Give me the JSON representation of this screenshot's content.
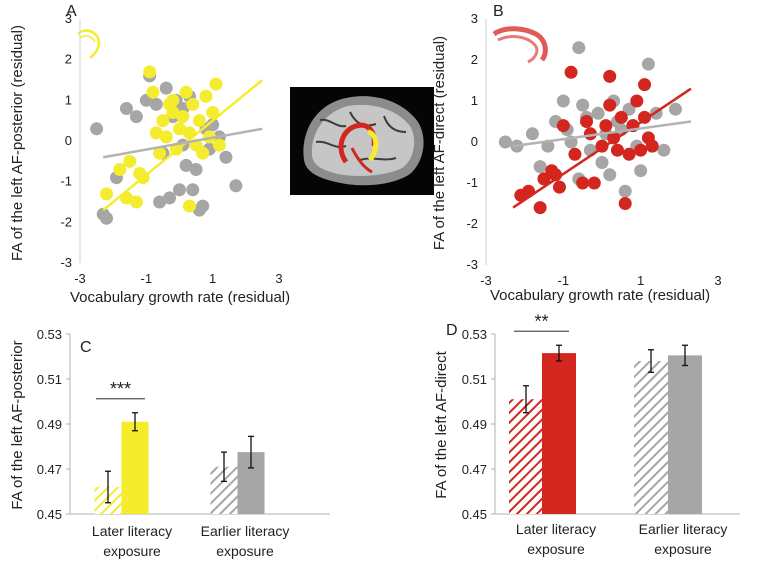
{
  "colors": {
    "yellow": "#f4ec2c",
    "red": "#d2261e",
    "gray": "#a6a6a6",
    "fit_gray": "#b3b3b3"
  },
  "brain_image": {
    "icon": "brain-mri-sagittal-icon"
  },
  "chart_data": [
    {
      "panel": "A",
      "type": "scatter",
      "xlabel": "Vocabulary growth rate (residual)",
      "ylabel": "FA of the left AF-posterior (residual)",
      "xlim": [
        -3,
        3
      ],
      "ylim": [
        -3,
        3
      ],
      "xticks": [
        "-3",
        "-1",
        "1",
        "3"
      ],
      "yticks": [
        "-3",
        "-2",
        "-1",
        "0",
        "1",
        "2",
        "3"
      ],
      "icon": "af-posterior-tract-icon",
      "series": [
        {
          "name": "later",
          "color": "#f4ec2c",
          "points": [
            [
              -2.2,
              -1.3
            ],
            [
              -1.8,
              -0.7
            ],
            [
              -1.6,
              -1.4
            ],
            [
              -1.5,
              -0.5
            ],
            [
              -1.3,
              -1.5
            ],
            [
              -1.2,
              -0.8
            ],
            [
              -1.1,
              -0.9
            ],
            [
              -0.9,
              1.7
            ],
            [
              -0.8,
              1.2
            ],
            [
              -0.7,
              0.2
            ],
            [
              -0.6,
              -0.3
            ],
            [
              -0.5,
              0.5
            ],
            [
              -0.4,
              0.1
            ],
            [
              -0.3,
              0.9
            ],
            [
              -0.2,
              1.0
            ],
            [
              -0.1,
              -0.2
            ],
            [
              0.0,
              0.3
            ],
            [
              0.1,
              0.6
            ],
            [
              0.2,
              1.2
            ],
            [
              0.3,
              0.2
            ],
            [
              0.4,
              0.9
            ],
            [
              0.5,
              -0.1
            ],
            [
              0.6,
              0.5
            ],
            [
              0.7,
              -0.3
            ],
            [
              0.8,
              1.1
            ],
            [
              0.9,
              0.1
            ],
            [
              1.0,
              0.7
            ],
            [
              1.1,
              1.4
            ],
            [
              1.2,
              -0.1
            ],
            [
              0.3,
              -1.6
            ],
            [
              -0.2,
              0.7
            ]
          ]
        },
        {
          "name": "earlier",
          "color": "#a6a6a6",
          "points": [
            [
              -2.5,
              0.3
            ],
            [
              -2.3,
              -1.8
            ],
            [
              -2.2,
              -1.9
            ],
            [
              -1.9,
              -0.9
            ],
            [
              -1.6,
              0.8
            ],
            [
              -1.3,
              0.6
            ],
            [
              -1.0,
              1.0
            ],
            [
              -0.9,
              1.6
            ],
            [
              -0.7,
              0.9
            ],
            [
              -0.6,
              -1.5
            ],
            [
              -0.5,
              -0.3
            ],
            [
              -0.3,
              -1.4
            ],
            [
              -0.2,
              0.6
            ],
            [
              -0.1,
              1.0
            ],
            [
              0.0,
              -1.2
            ],
            [
              0.1,
              -0.1
            ],
            [
              0.2,
              -0.6
            ],
            [
              0.3,
              1.1
            ],
            [
              0.4,
              -1.2
            ],
            [
              0.5,
              -0.7
            ],
            [
              0.6,
              -1.7
            ],
            [
              0.7,
              -1.6
            ],
            [
              0.8,
              0.3
            ],
            [
              0.9,
              -0.2
            ],
            [
              1.0,
              0.4
            ],
            [
              1.2,
              0.1
            ],
            [
              1.4,
              -0.4
            ],
            [
              1.7,
              -1.1
            ],
            [
              0.1,
              0.8
            ],
            [
              -0.4,
              1.3
            ]
          ]
        }
      ],
      "fits": [
        {
          "name": "later",
          "color": "#f4ec2c",
          "from": [
            -2.3,
            -1.7
          ],
          "to": [
            2.5,
            1.5
          ]
        },
        {
          "name": "earlier",
          "color": "#b3b3b3",
          "from": [
            -2.3,
            -0.4
          ],
          "to": [
            2.5,
            0.3
          ]
        }
      ]
    },
    {
      "panel": "B",
      "type": "scatter",
      "xlabel": "Vocabulary growth rate (residual)",
      "ylabel": "FA of the left AF-direct (residual)",
      "xlim": [
        -3,
        3
      ],
      "ylim": [
        -3,
        3
      ],
      "xticks": [
        "-3",
        "-1",
        "1",
        "3"
      ],
      "yticks": [
        "-3",
        "-2",
        "-1",
        "0",
        "1",
        "2",
        "3"
      ],
      "icon": "af-direct-tract-icon",
      "series": [
        {
          "name": "later",
          "color": "#d2261e",
          "points": [
            [
              -2.1,
              -1.3
            ],
            [
              -1.9,
              -1.2
            ],
            [
              -1.6,
              -1.6
            ],
            [
              -1.5,
              -0.9
            ],
            [
              -1.3,
              -0.7
            ],
            [
              -1.2,
              -0.8
            ],
            [
              -1.1,
              -1.1
            ],
            [
              -1.0,
              0.4
            ],
            [
              -0.8,
              1.7
            ],
            [
              -0.7,
              -0.3
            ],
            [
              -0.5,
              -1.0
            ],
            [
              -0.4,
              0.5
            ],
            [
              -0.3,
              0.2
            ],
            [
              -0.2,
              -1.0
            ],
            [
              0.0,
              -0.1
            ],
            [
              0.1,
              0.4
            ],
            [
              0.2,
              0.9
            ],
            [
              0.3,
              0.1
            ],
            [
              0.4,
              -0.2
            ],
            [
              0.5,
              0.6
            ],
            [
              0.6,
              -1.5
            ],
            [
              0.7,
              -0.3
            ],
            [
              0.8,
              0.4
            ],
            [
              0.9,
              1.0
            ],
            [
              1.0,
              -0.2
            ],
            [
              1.1,
              0.6
            ],
            [
              1.2,
              0.1
            ],
            [
              1.3,
              -0.1
            ],
            [
              1.1,
              1.4
            ],
            [
              0.2,
              1.6
            ]
          ]
        },
        {
          "name": "earlier",
          "color": "#a6a6a6",
          "points": [
            [
              -2.5,
              0.0
            ],
            [
              -2.2,
              -0.1
            ],
            [
              -1.8,
              0.2
            ],
            [
              -1.6,
              -0.6
            ],
            [
              -1.4,
              -0.1
            ],
            [
              -1.2,
              0.5
            ],
            [
              -1.0,
              1.0
            ],
            [
              -0.9,
              0.3
            ],
            [
              -0.8,
              0.0
            ],
            [
              -0.6,
              2.3
            ],
            [
              -0.5,
              0.9
            ],
            [
              -0.4,
              0.6
            ],
            [
              -0.3,
              -0.2
            ],
            [
              -0.1,
              0.7
            ],
            [
              0.0,
              -0.5
            ],
            [
              0.1,
              0.2
            ],
            [
              0.2,
              -0.8
            ],
            [
              0.3,
              1.0
            ],
            [
              0.4,
              0.5
            ],
            [
              0.6,
              -1.2
            ],
            [
              0.7,
              0.8
            ],
            [
              0.8,
              0.4
            ],
            [
              0.9,
              -0.1
            ],
            [
              1.0,
              -0.7
            ],
            [
              1.2,
              1.9
            ],
            [
              1.4,
              0.7
            ],
            [
              1.6,
              -0.2
            ],
            [
              0.5,
              0.3
            ],
            [
              -1.5,
              -0.9
            ],
            [
              1.9,
              0.8
            ],
            [
              -0.6,
              -0.9
            ]
          ]
        }
      ],
      "fits": [
        {
          "name": "later",
          "color": "#d2261e",
          "from": [
            -2.3,
            -1.6
          ],
          "to": [
            2.3,
            1.3
          ]
        },
        {
          "name": "earlier",
          "color": "#b3b3b3",
          "from": [
            -2.3,
            -0.1
          ],
          "to": [
            2.3,
            0.5
          ]
        }
      ]
    },
    {
      "panel": "C",
      "type": "bar",
      "ylabel": "FA of the left AF-posterior",
      "ylim": [
        0.45,
        0.53
      ],
      "yticks": [
        "0.45",
        "0.47",
        "0.49",
        "0.51",
        "0.53"
      ],
      "groups": [
        {
          "label_lines": [
            "Later literacy",
            "exposure"
          ],
          "bars": [
            {
              "value": 0.462,
              "err": 0.007,
              "color": "#f4ec2c",
              "hatched": true
            },
            {
              "value": 0.491,
              "err": 0.004,
              "color": "#f4ec2c",
              "hatched": false
            }
          ],
          "significance": "***"
        },
        {
          "label_lines": [
            "Earlier literacy",
            "exposure"
          ],
          "bars": [
            {
              "value": 0.471,
              "err": 0.0065,
              "color": "#a6a6a6",
              "hatched": true
            },
            {
              "value": 0.4775,
              "err": 0.007,
              "color": "#a6a6a6",
              "hatched": false
            }
          ]
        }
      ]
    },
    {
      "panel": "D",
      "type": "bar",
      "ylabel": "FA of the left AF-direct",
      "ylim": [
        0.45,
        0.53
      ],
      "yticks": [
        "0.45",
        "0.47",
        "0.49",
        "0.51",
        "0.53"
      ],
      "groups": [
        {
          "label_lines": [
            "Later literacy",
            "exposure"
          ],
          "bars": [
            {
              "value": 0.501,
              "err": 0.006,
              "color": "#d2261e",
              "hatched": true
            },
            {
              "value": 0.5215,
              "err": 0.0035,
              "color": "#d2261e",
              "hatched": false
            }
          ],
          "significance": "**"
        },
        {
          "label_lines": [
            "Earlier literacy",
            "exposure"
          ],
          "bars": [
            {
              "value": 0.518,
              "err": 0.005,
              "color": "#a6a6a6",
              "hatched": true
            },
            {
              "value": 0.5205,
              "err": 0.0045,
              "color": "#a6a6a6",
              "hatched": false
            }
          ]
        }
      ]
    }
  ]
}
